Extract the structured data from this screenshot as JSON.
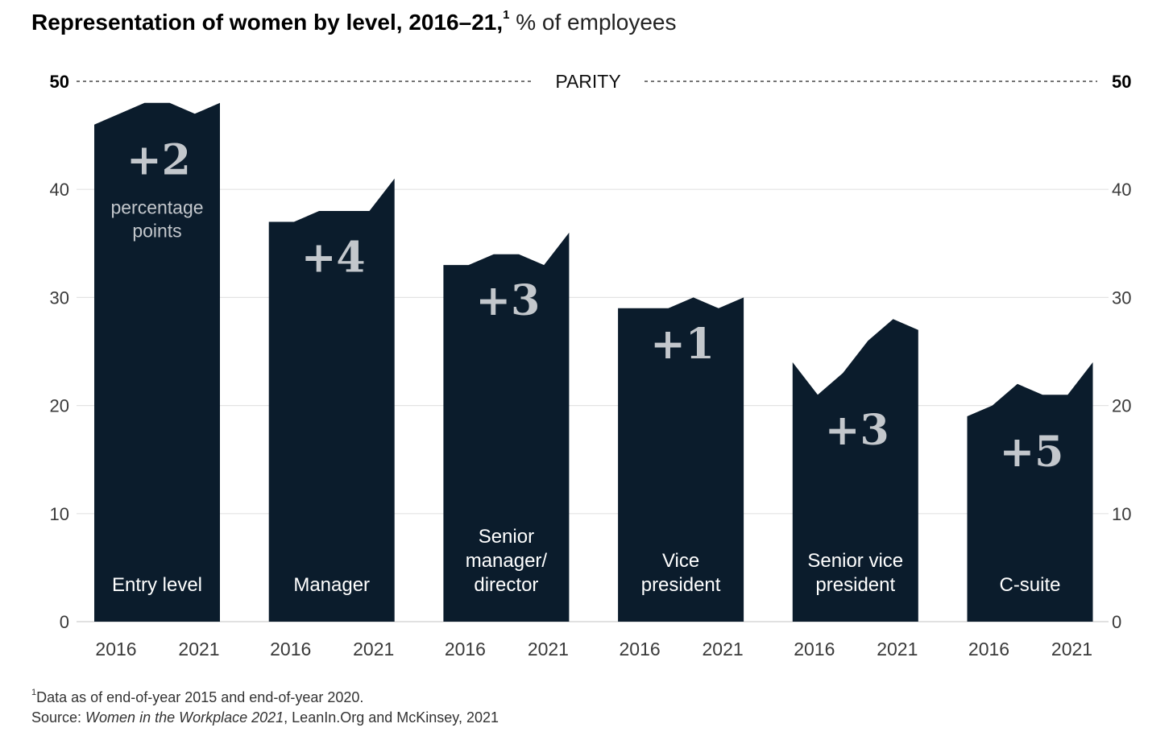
{
  "title": {
    "main": "Representation of women by level, 2016–21,",
    "footnote_marker": "1",
    "unit": "% of employees"
  },
  "colors": {
    "bar": "#0b1c2c",
    "change_label": "#c3c7cc",
    "category_label": "#ffffff",
    "grid": "#e3e3e3",
    "axis_text": "#3a3a3a"
  },
  "chart_data": {
    "type": "area",
    "ylim": [
      0,
      50
    ],
    "yticks": [
      0,
      10,
      20,
      30,
      40,
      50
    ],
    "parity_label": "PARITY",
    "parity_value": 50,
    "x_tick_labels": [
      "2016",
      "2021"
    ],
    "groups": [
      {
        "name": "Entry level",
        "lines": [
          "Entry level"
        ],
        "values": [
          46,
          47,
          48,
          48,
          47,
          48
        ],
        "change": "+2",
        "change_note": [
          "percentage",
          "points"
        ]
      },
      {
        "name": "Manager",
        "lines": [
          "Manager"
        ],
        "values": [
          37,
          37,
          38,
          38,
          38,
          41
        ],
        "change": "+4"
      },
      {
        "name": "Senior manager/ director",
        "lines": [
          "Senior",
          "manager/",
          "director"
        ],
        "values": [
          33,
          33,
          34,
          34,
          33,
          36
        ],
        "change": "+3"
      },
      {
        "name": "Vice president",
        "lines": [
          "Vice",
          "president"
        ],
        "values": [
          29,
          29,
          29,
          30,
          29,
          30
        ],
        "change": "+1"
      },
      {
        "name": "Senior vice president",
        "lines": [
          "Senior vice",
          "president"
        ],
        "values": [
          24,
          21,
          23,
          26,
          28,
          27
        ],
        "change": "+3"
      },
      {
        "name": "C-suite",
        "lines": [
          "C-suite"
        ],
        "values": [
          19,
          20,
          22,
          21,
          21,
          24
        ],
        "change": "+5"
      }
    ]
  },
  "footnote": {
    "marker": "1",
    "note": "Data as of end-of-year 2015 and end-of-year 2020.",
    "source_prefix": "Source: ",
    "source_title": "Women in the Workplace 2021",
    "source_rest": ", LeanIn.Org and McKinsey, 2021"
  }
}
